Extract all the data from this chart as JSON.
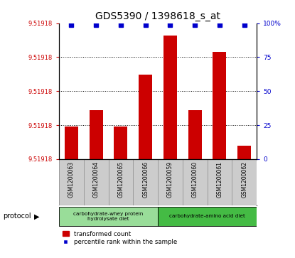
{
  "title": "GDS5390 / 1398618_s_at",
  "samples": [
    "GSM1200063",
    "GSM1200064",
    "GSM1200065",
    "GSM1200066",
    "GSM1200059",
    "GSM1200060",
    "GSM1200061",
    "GSM1200062"
  ],
  "bar_heights_pct": [
    24,
    36,
    24,
    62,
    91,
    36,
    79,
    10
  ],
  "percentile_rank": [
    99,
    99,
    99,
    99,
    99,
    99,
    99,
    99
  ],
  "bar_color": "#cc0000",
  "dot_color": "#0000cc",
  "left_ytick_labels": [
    "9.51918",
    "9.51918",
    "9.51918",
    "9.51918",
    "9.51918"
  ],
  "left_ytick_positions": [
    0,
    25,
    50,
    75,
    100
  ],
  "right_ytick_positions": [
    0,
    25,
    50,
    75,
    100
  ],
  "right_ytick_labels": [
    "0",
    "25",
    "50",
    "75",
    "100%"
  ],
  "ylim": [
    0,
    100
  ],
  "protocols": [
    {
      "label": "carbohydrate-whey protein\nhydrolysate diet",
      "indices": [
        0,
        1,
        2,
        3
      ],
      "color": "#99dd99"
    },
    {
      "label": "carbohydrate-amino acid diet",
      "indices": [
        4,
        5,
        6,
        7
      ],
      "color": "#44bb44"
    }
  ],
  "protocol_label": "protocol",
  "legend_bar_label": "transformed count",
  "legend_dot_label": "percentile rank within the sample",
  "title_fontsize": 10,
  "left_tick_color": "#cc0000",
  "right_tick_color": "#0000cc",
  "bg_color": "#ffffff",
  "plot_bg": "#ffffff",
  "sample_label_bg": "#cccccc"
}
